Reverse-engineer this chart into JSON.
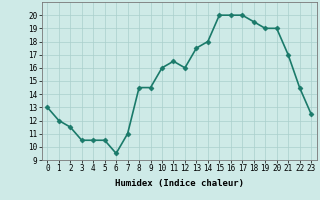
{
  "x": [
    0,
    1,
    2,
    3,
    4,
    5,
    6,
    7,
    8,
    9,
    10,
    11,
    12,
    13,
    14,
    15,
    16,
    17,
    18,
    19,
    20,
    21,
    22,
    23
  ],
  "y": [
    13,
    12,
    11.5,
    10.5,
    10.5,
    10.5,
    9.5,
    11,
    14.5,
    14.5,
    16,
    16.5,
    16,
    17.5,
    18,
    20,
    20,
    20,
    19.5,
    19,
    19,
    17,
    14.5,
    12.5
  ],
  "line_color": "#1a7a6a",
  "marker_color": "#1a7a6a",
  "bg_color": "#ceeae7",
  "grid_color": "#aacfcc",
  "xlabel": "Humidex (Indice chaleur)",
  "ylim": [
    9,
    21
  ],
  "xlim": [
    -0.5,
    23.5
  ],
  "yticks": [
    9,
    10,
    11,
    12,
    13,
    14,
    15,
    16,
    17,
    18,
    19,
    20
  ],
  "xticks": [
    0,
    1,
    2,
    3,
    4,
    5,
    6,
    7,
    8,
    9,
    10,
    11,
    12,
    13,
    14,
    15,
    16,
    17,
    18,
    19,
    20,
    21,
    22,
    23
  ],
  "xtick_labels": [
    "0",
    "1",
    "2",
    "3",
    "4",
    "5",
    "6",
    "7",
    "8",
    "9",
    "10",
    "11",
    "12",
    "13",
    "14",
    "15",
    "16",
    "17",
    "18",
    "19",
    "20",
    "21",
    "22",
    "23"
  ],
  "font_color": "#000000",
  "xlabel_fontsize": 6.5,
  "tick_fontsize": 5.5,
  "linewidth": 1.2,
  "markersize": 2.5
}
